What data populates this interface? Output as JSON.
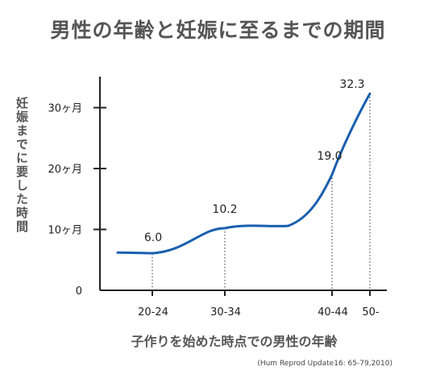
{
  "title": "男性の年齢と妊娠に至るまでの期間",
  "ylabel": "妊娠までに要した時間",
  "xlabel": "子作りを始めた時点での男性の年齢",
  "source": "(Hum Reprod Update16: 65-79,2010)",
  "colors": {
    "line": "#1a5fb0",
    "axis": "#222222"
  },
  "chart_data": {
    "type": "line",
    "categories": [
      "20-24",
      "30-34",
      "40-44",
      "50-"
    ],
    "values": [
      6.0,
      10.2,
      19.0,
      32.3
    ],
    "data_labels": [
      "6.0",
      "10.2",
      "19.0",
      "32.3"
    ],
    "y_ticks": [
      {
        "value": 0,
        "label": "0"
      },
      {
        "value": 10,
        "label": "10ヶ月"
      },
      {
        "value": 20,
        "label": "20ヶ月"
      },
      {
        "value": 30,
        "label": "30ヶ月"
      }
    ],
    "ylim": [
      0,
      35
    ],
    "grid": false,
    "xlabel": "子作りを始めた時点での男性の年齢",
    "ylabel": "妊娠までに要した時間"
  }
}
